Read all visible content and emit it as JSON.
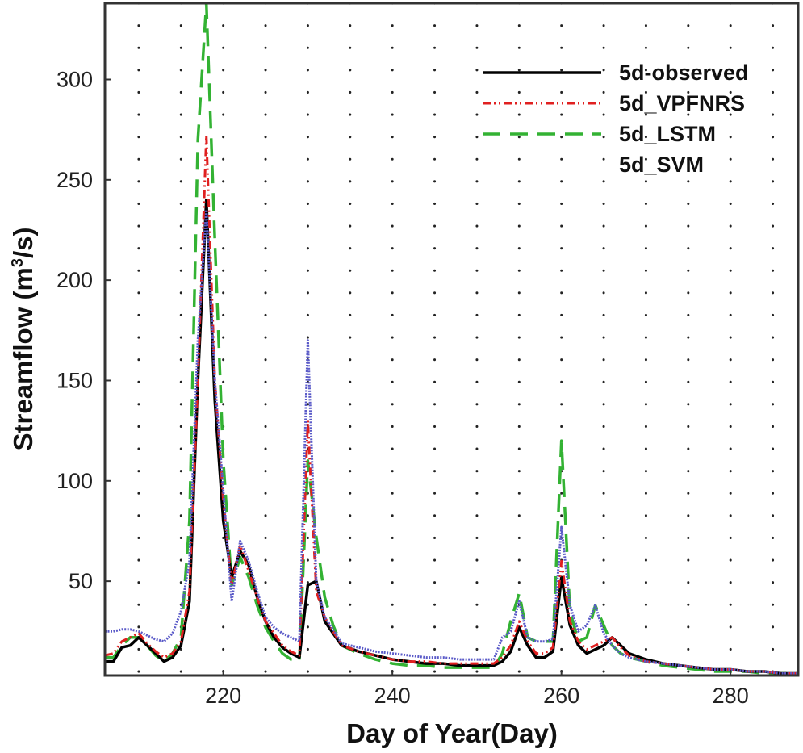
{
  "chart_data": {
    "type": "line",
    "title": "",
    "xlabel": "Day of Year(Day)",
    "ylabel": "Streamflow (m3/s)",
    "ylabel_parts": {
      "pre": "Streamflow (m",
      "sup": "3",
      "post": "/s)"
    },
    "xlim": [
      206,
      288
    ],
    "ylim": [
      3,
      338
    ],
    "xticks": [
      220,
      240,
      260,
      280
    ],
    "yticks": [
      50,
      100,
      150,
      200,
      250,
      300
    ],
    "grid": "dotted",
    "legend_position": "top-right",
    "colors": {
      "observed": "#000000",
      "vpfnrs": "#e02020",
      "lstm": "#33b233",
      "svm": "#5a5ac8"
    },
    "series": [
      {
        "name": "5d-observed",
        "key": "observed",
        "x": [
          206,
          207,
          208,
          209,
          210,
          211,
          212,
          213,
          214,
          215,
          216,
          217,
          218,
          219,
          220,
          221,
          222,
          223,
          224,
          225,
          226,
          227,
          228,
          229,
          230,
          231,
          232,
          233,
          234,
          236,
          238,
          240,
          242,
          244,
          246,
          248,
          250,
          252,
          253,
          254,
          255,
          256,
          257,
          258,
          259,
          260,
          261,
          262,
          263,
          264,
          265,
          266,
          267,
          268,
          270,
          272,
          274,
          276,
          278,
          280,
          282,
          284,
          286,
          288
        ],
        "y": [
          10,
          10,
          17,
          18,
          22,
          18,
          14,
          10,
          12,
          18,
          40,
          150,
          240,
          140,
          80,
          52,
          65,
          58,
          42,
          30,
          22,
          17,
          14,
          12,
          48,
          50,
          30,
          24,
          18,
          15,
          13,
          11,
          10,
          9,
          9,
          8,
          8,
          8,
          10,
          15,
          27,
          18,
          12,
          12,
          15,
          52,
          28,
          18,
          14,
          16,
          18,
          22,
          18,
          14,
          11,
          9,
          8,
          7,
          6,
          6,
          5,
          5,
          4,
          4
        ]
      },
      {
        "name": "5d_VPFNRS",
        "key": "vpfnrs",
        "x": [
          206,
          207,
          208,
          209,
          210,
          211,
          212,
          213,
          214,
          215,
          216,
          217,
          218,
          219,
          220,
          221,
          222,
          223,
          224,
          225,
          226,
          227,
          228,
          229,
          230,
          231,
          232,
          233,
          234,
          236,
          238,
          240,
          242,
          244,
          246,
          248,
          250,
          252,
          253,
          254,
          255,
          256,
          257,
          258,
          259,
          260,
          261,
          262,
          263,
          264,
          265,
          266,
          267,
          268,
          270,
          272,
          274,
          276,
          278,
          280,
          282,
          284,
          286,
          288
        ],
        "y": [
          13,
          14,
          20,
          22,
          24,
          19,
          15,
          12,
          14,
          20,
          45,
          150,
          272,
          150,
          90,
          48,
          68,
          55,
          42,
          30,
          24,
          18,
          15,
          13,
          130,
          45,
          32,
          25,
          18,
          15,
          13,
          11,
          10,
          10,
          9,
          9,
          9,
          9,
          12,
          18,
          30,
          20,
          14,
          14,
          17,
          60,
          30,
          20,
          16,
          18,
          20,
          22,
          17,
          13,
          10,
          9,
          8,
          7,
          6,
          6,
          5,
          5,
          4,
          4
        ]
      },
      {
        "name": "5d_LSTM",
        "key": "lstm",
        "x": [
          206,
          207,
          208,
          209,
          210,
          211,
          212,
          213,
          214,
          215,
          216,
          217,
          218,
          219,
          220,
          221,
          222,
          223,
          224,
          225,
          226,
          227,
          228,
          229,
          230,
          231,
          232,
          233,
          234,
          236,
          238,
          240,
          242,
          244,
          246,
          248,
          250,
          252,
          253,
          254,
          255,
          256,
          257,
          258,
          259,
          260,
          261,
          262,
          263,
          264,
          265,
          266,
          267,
          268,
          270,
          272,
          274,
          276,
          278,
          280,
          282,
          284,
          286,
          288
        ],
        "y": [
          12,
          12,
          18,
          22,
          22,
          18,
          13,
          10,
          14,
          22,
          80,
          270,
          338,
          220,
          110,
          48,
          62,
          52,
          38,
          27,
          20,
          14,
          11,
          10,
          110,
          72,
          42,
          28,
          18,
          14,
          11,
          9,
          8,
          8,
          7,
          7,
          7,
          7,
          14,
          30,
          44,
          22,
          20,
          20,
          20,
          120,
          35,
          20,
          22,
          38,
          28,
          18,
          14,
          12,
          10,
          8,
          7,
          6,
          5,
          5,
          5,
          4,
          4,
          4
        ]
      },
      {
        "name": "5d_SVM",
        "key": "svm",
        "x": [
          206,
          207,
          208,
          209,
          210,
          211,
          212,
          213,
          214,
          215,
          216,
          217,
          218,
          219,
          220,
          221,
          222,
          223,
          224,
          225,
          226,
          227,
          228,
          229,
          230,
          231,
          232,
          233,
          234,
          236,
          238,
          240,
          242,
          244,
          246,
          248,
          250,
          252,
          253,
          254,
          255,
          256,
          257,
          258,
          259,
          260,
          261,
          262,
          263,
          264,
          265,
          266,
          267,
          268,
          270,
          272,
          274,
          276,
          278,
          280,
          282,
          284,
          286,
          288
        ],
        "y": [
          25,
          25,
          26,
          26,
          25,
          23,
          21,
          20,
          24,
          35,
          60,
          170,
          235,
          150,
          95,
          40,
          70,
          60,
          45,
          32,
          27,
          24,
          22,
          20,
          170,
          50,
          32,
          26,
          19,
          17,
          15,
          14,
          13,
          12,
          12,
          11,
          11,
          11,
          22,
          25,
          40,
          22,
          20,
          20,
          21,
          77,
          38,
          25,
          28,
          38,
          24,
          18,
          14,
          12,
          10,
          9,
          8,
          7,
          6,
          6,
          5,
          5,
          4,
          4
        ]
      }
    ]
  }
}
